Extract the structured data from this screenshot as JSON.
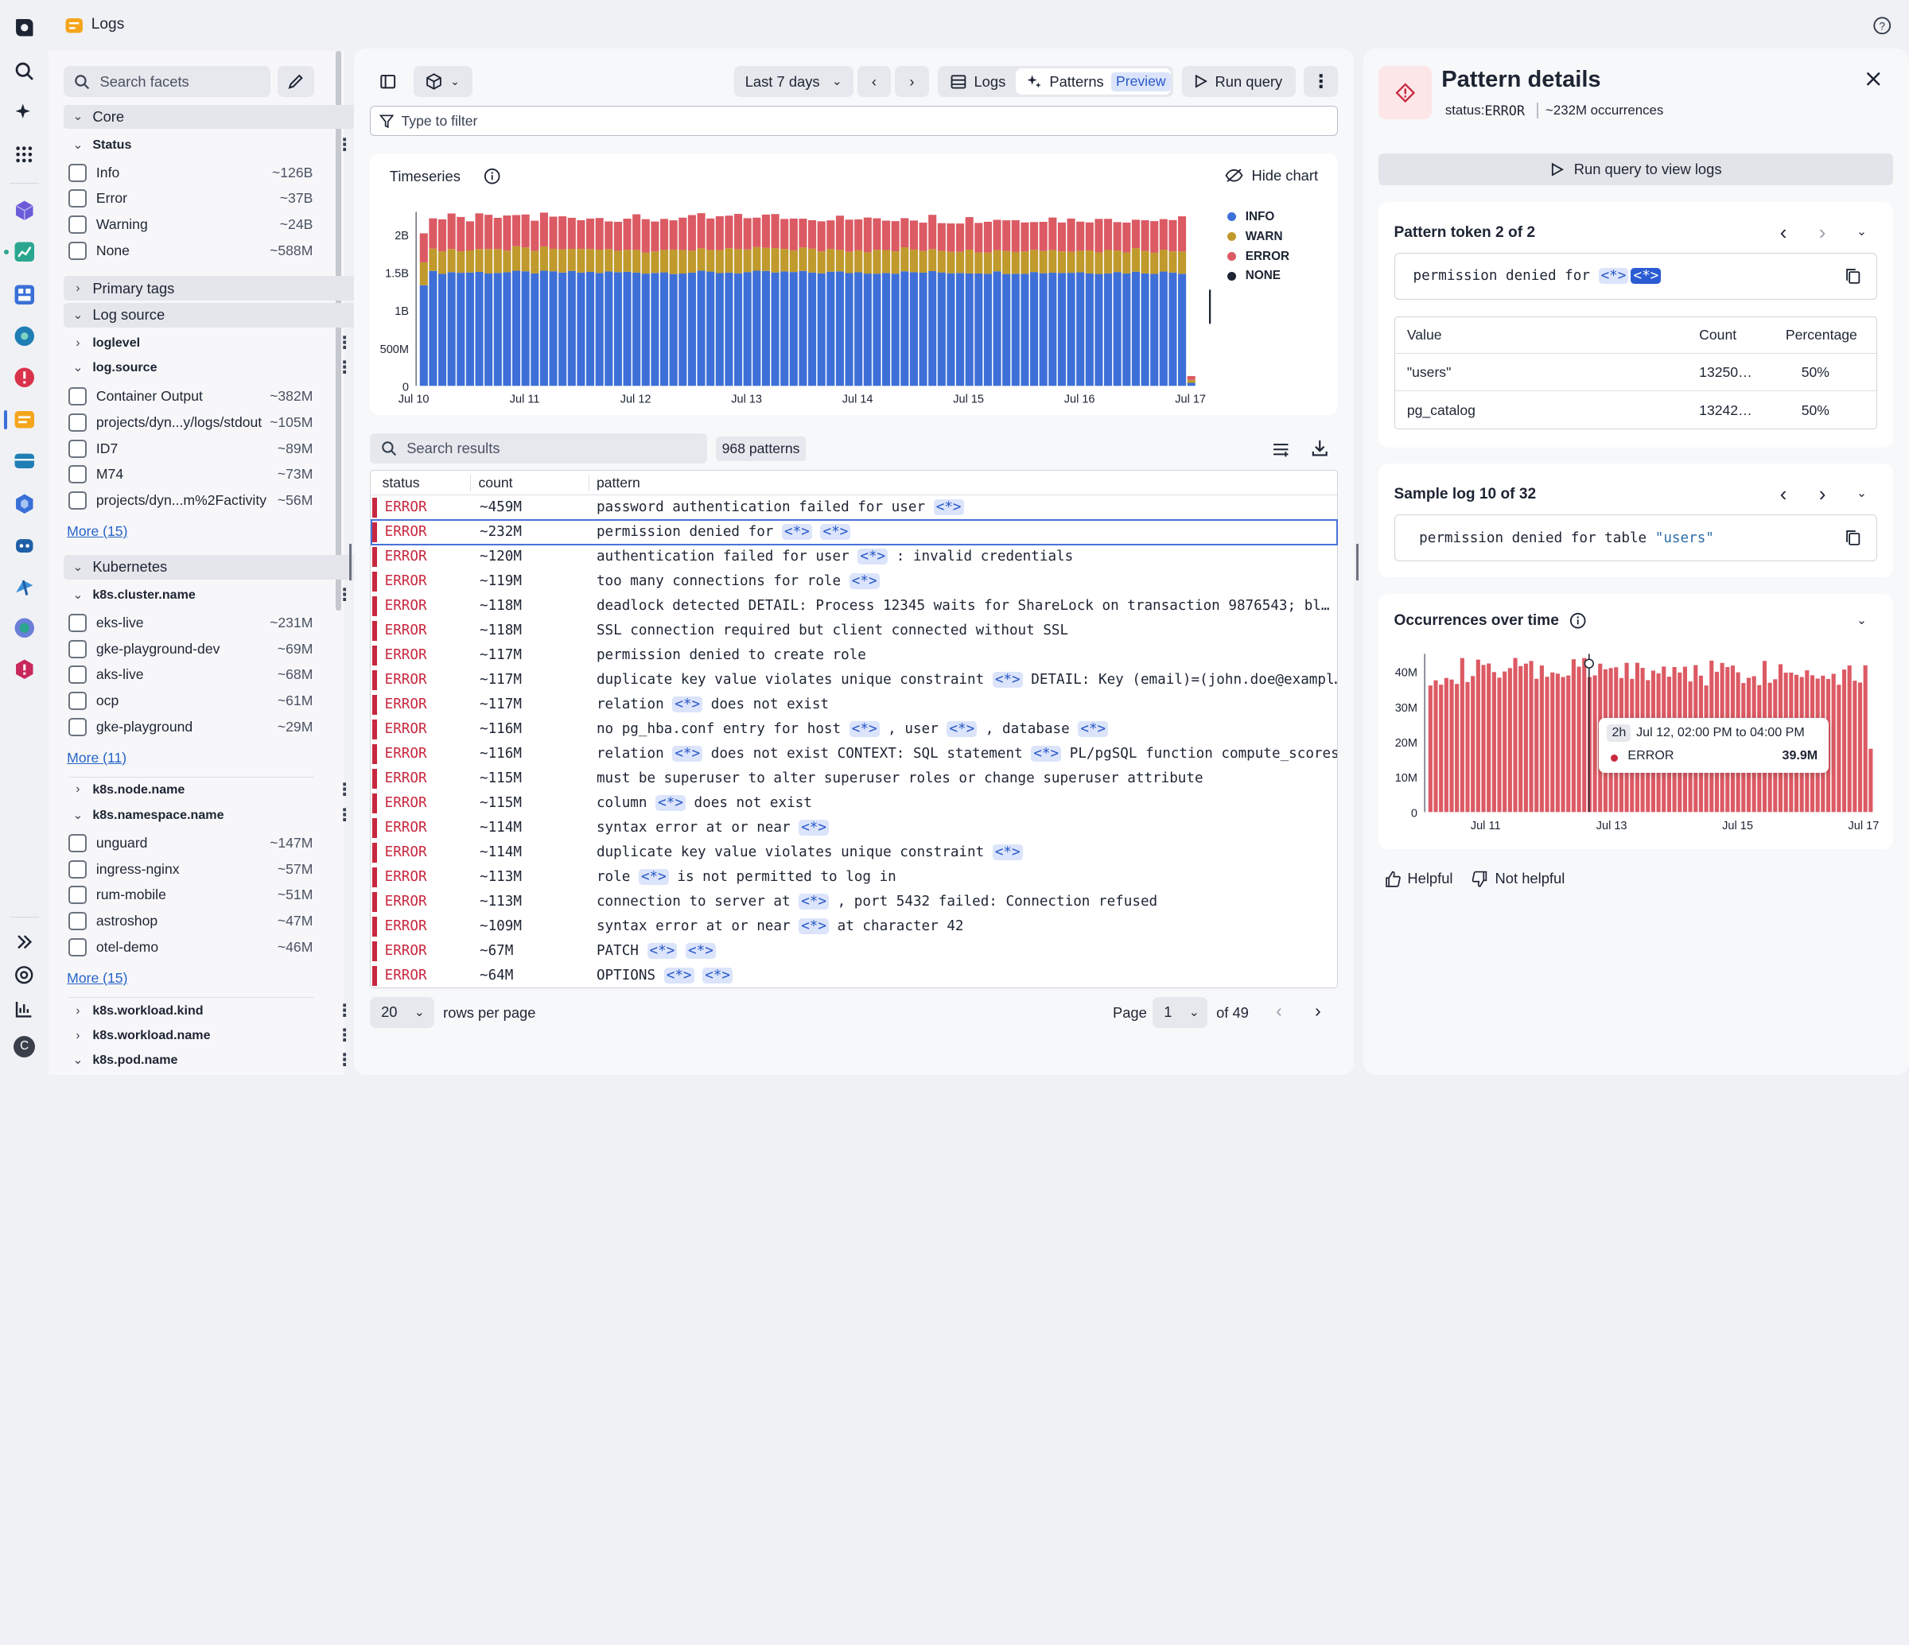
{
  "app": {
    "title": "Logs"
  },
  "facets": {
    "search_placeholder": "Search facets",
    "core": {
      "label": "Core"
    },
    "status": {
      "label": "Status",
      "items": [
        {
          "label": "Info",
          "count": "~126B"
        },
        {
          "label": "Error",
          "count": "~37B"
        },
        {
          "label": "Warning",
          "count": "~24B"
        },
        {
          "label": "None",
          "count": "~588M"
        }
      ]
    },
    "primary_tags": {
      "label": "Primary tags"
    },
    "log_source": {
      "label": "Log source"
    },
    "loglevel": {
      "label": "loglevel"
    },
    "logsource": {
      "label": "log.source",
      "items": [
        {
          "label": "Container Output",
          "count": "~382M"
        },
        {
          "label": "projects/dyn...y/logs/stdout",
          "count": "~105M"
        },
        {
          "label": "ID7",
          "count": "~89M"
        },
        {
          "label": "M74",
          "count": "~73M"
        },
        {
          "label": "projects/dyn...m%2Factivity",
          "count": "~56M"
        }
      ],
      "more": "More (15)"
    },
    "kubernetes": {
      "label": "Kubernetes"
    },
    "cluster": {
      "label": "k8s.cluster.name",
      "items": [
        {
          "label": "eks-live",
          "count": "~231M"
        },
        {
          "label": "gke-playground-dev",
          "count": "~69M"
        },
        {
          "label": "aks-live",
          "count": "~68M"
        },
        {
          "label": "ocp",
          "count": "~61M"
        },
        {
          "label": "gke-playground",
          "count": "~29M"
        }
      ],
      "more": "More (11)"
    },
    "node": {
      "label": "k8s.node.name"
    },
    "namespace": {
      "label": "k8s.namespace.name",
      "items": [
        {
          "label": "unguard",
          "count": "~147M"
        },
        {
          "label": "ingress-nginx",
          "count": "~57M"
        },
        {
          "label": "rum-mobile",
          "count": "~51M"
        },
        {
          "label": "astroshop",
          "count": "~47M"
        },
        {
          "label": "otel-demo",
          "count": "~46M"
        }
      ],
      "more": "More (15)"
    },
    "workload_kind": {
      "label": "k8s.workload.kind"
    },
    "workload_name": {
      "label": "k8s.workload.name"
    },
    "pod_name": {
      "label": "k8s.pod.name"
    }
  },
  "toolbar": {
    "timeframe": "Last 7 days",
    "logs_label": "Logs",
    "patterns_label": "Patterns",
    "preview_badge": "Preview",
    "run_query": "Run query",
    "filter_placeholder": "Type to filter"
  },
  "timeseries": {
    "title": "Timeseries",
    "hide_chart": "Hide chart"
  },
  "chart_data": [
    {
      "type": "bar",
      "stacked": true,
      "title": "Timeseries",
      "x_ticks": [
        "Jul 10",
        "Jul 11",
        "Jul 12",
        "Jul 13",
        "Jul 14",
        "Jul 15",
        "Jul 16",
        "Jul 17"
      ],
      "y_ticks": [
        "0",
        "500M",
        "1B",
        "1.5B",
        "2B"
      ],
      "ylim": [
        0,
        2300000000
      ],
      "legend": [
        "INFO",
        "WARN",
        "ERROR",
        "NONE"
      ],
      "colors": {
        "INFO": "#3e6fd8",
        "WARN": "#c09a2c",
        "ERROR": "#dc5a64",
        "NONE": "#1d2433"
      },
      "bars_per_series": 84,
      "series_mean": {
        "INFO": 1500000000,
        "WARN": 300000000,
        "ERROR": 430000000,
        "NONE": 0
      }
    },
    {
      "type": "bar",
      "title": "Occurrences over time",
      "x_ticks": [
        "Jul 11",
        "Jul 13",
        "Jul 15",
        "Jul 17"
      ],
      "y_ticks": [
        "0",
        "10M",
        "20M",
        "30M",
        "40M"
      ],
      "ylim": [
        0,
        45000000
      ],
      "series": [
        {
          "name": "ERROR",
          "color": "#dc5a64"
        }
      ],
      "bars": 84,
      "mean": 40000000,
      "tooltip": {
        "interval": "2h",
        "range": "Jul 12, 02:00 PM to 04:00 PM",
        "series": "ERROR",
        "value": "39.9M"
      }
    }
  ],
  "results": {
    "search_placeholder": "Search results",
    "badge": "968 patterns",
    "columns": [
      "status",
      "count",
      "pattern"
    ],
    "rows": [
      {
        "status": "ERROR",
        "count": "~459M",
        "pattern": [
          "password authentication failed for user ",
          "<*>"
        ]
      },
      {
        "status": "ERROR",
        "count": "~232M",
        "pattern": [
          "permission denied for ",
          "<*>",
          " ",
          "<*>"
        ],
        "selected": true
      },
      {
        "status": "ERROR",
        "count": "~120M",
        "pattern": [
          "authentication failed for user ",
          "<*>",
          " : invalid credentials"
        ]
      },
      {
        "status": "ERROR",
        "count": "~119M",
        "pattern": [
          "too many connections for role ",
          "<*>"
        ]
      },
      {
        "status": "ERROR",
        "count": "~118M",
        "pattern": [
          "deadlock detected DETAIL: Process 12345 waits for ShareLock on transaction 9876543; bl…"
        ]
      },
      {
        "status": "ERROR",
        "count": "~118M",
        "pattern": [
          "SSL connection required but client connected without SSL"
        ]
      },
      {
        "status": "ERROR",
        "count": "~117M",
        "pattern": [
          "permission denied to create role"
        ]
      },
      {
        "status": "ERROR",
        "count": "~117M",
        "pattern": [
          "duplicate key value violates unique constraint ",
          "<*>",
          " DETAIL: Key (email)=(john.doe@exampl…"
        ]
      },
      {
        "status": "ERROR",
        "count": "~117M",
        "pattern": [
          "relation ",
          "<*>",
          " does not exist"
        ]
      },
      {
        "status": "ERROR",
        "count": "~116M",
        "pattern": [
          "no pg_hba.conf entry for host ",
          "<*>",
          " , user ",
          "<*>",
          " , database ",
          "<*>"
        ]
      },
      {
        "status": "ERROR",
        "count": "~116M",
        "pattern": [
          "relation ",
          "<*>",
          " does not exist CONTEXT: SQL statement ",
          "<*>",
          " PL/pgSQL function compute_scores(…"
        ]
      },
      {
        "status": "ERROR",
        "count": "~115M",
        "pattern": [
          "must be superuser to alter superuser roles or change superuser attribute"
        ]
      },
      {
        "status": "ERROR",
        "count": "~115M",
        "pattern": [
          "column ",
          "<*>",
          " does not exist"
        ]
      },
      {
        "status": "ERROR",
        "count": "~114M",
        "pattern": [
          "syntax error at or near ",
          "<*>"
        ]
      },
      {
        "status": "ERROR",
        "count": "~114M",
        "pattern": [
          "duplicate key value violates unique constraint ",
          "<*>"
        ]
      },
      {
        "status": "ERROR",
        "count": "~113M",
        "pattern": [
          "role ",
          "<*>",
          " is not permitted to log in"
        ]
      },
      {
        "status": "ERROR",
        "count": "~113M",
        "pattern": [
          "connection to server at ",
          "<*>",
          " , port 5432 failed: Connection refused"
        ]
      },
      {
        "status": "ERROR",
        "count": "~109M",
        "pattern": [
          "syntax error at or near ",
          "<*>",
          " at character 42"
        ]
      },
      {
        "status": "ERROR",
        "count": "~67M",
        "pattern": [
          "PATCH ",
          "<*>",
          " ",
          "<*>"
        ]
      },
      {
        "status": "ERROR",
        "count": "~64M",
        "pattern": [
          "OPTIONS ",
          "<*>",
          " ",
          "<*>"
        ]
      }
    ]
  },
  "pagination": {
    "rows_per_page": "20",
    "rows_label": "rows per page",
    "page_label": "Page",
    "page": "1",
    "of": "of 49"
  },
  "details": {
    "title": "Pattern details",
    "status_key": "status:",
    "status_val": "ERROR",
    "occurrences": "~232M occurrences",
    "run_query": "Run query to view logs",
    "token_title": "Pattern token 2 of 2",
    "token_text": "permission denied for ",
    "token1": "<*>",
    "token2": "<*>",
    "table": {
      "columns": [
        "Value",
        "Count",
        "Percentage"
      ],
      "rows": [
        {
          "value": "\"users\"",
          "count": "13250…",
          "pct": "50%"
        },
        {
          "value": "pg_catalog",
          "count": "13242…",
          "pct": "50%"
        }
      ]
    },
    "sample_title": "Sample log 10 of 32",
    "sample_text": "permission denied for table ",
    "sample_val": "\"users\"",
    "occ_title": "Occurrences over time",
    "helpful": "Helpful",
    "not_helpful": "Not helpful"
  }
}
